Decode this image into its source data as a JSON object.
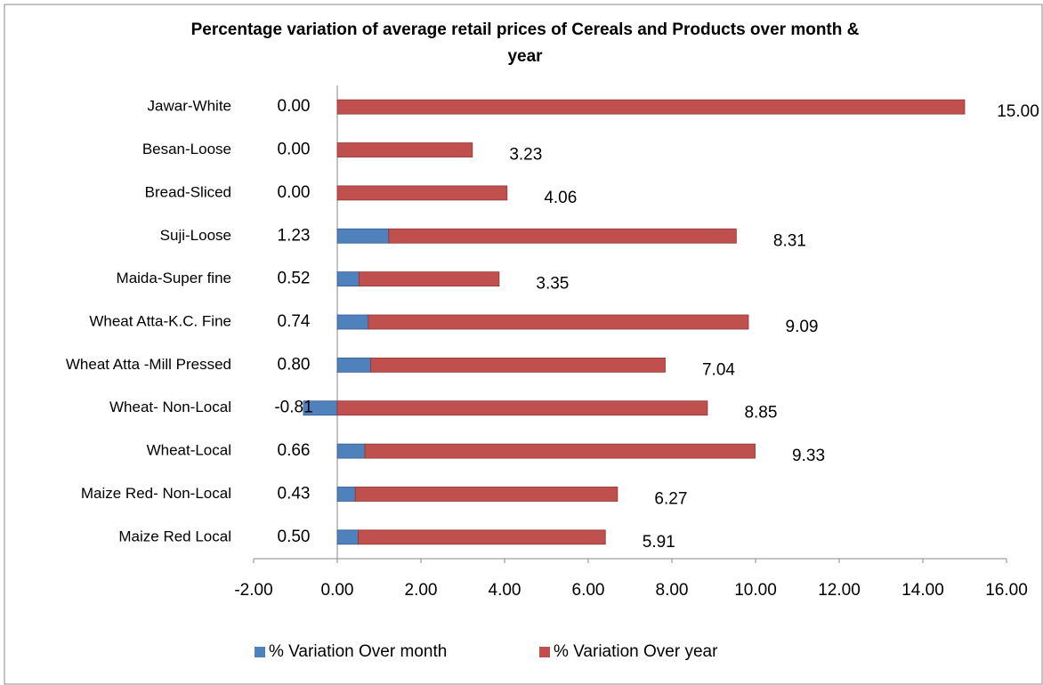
{
  "chart_data": {
    "type": "bar",
    "orientation": "horizontal",
    "stacked": true,
    "title": "Percentage variation of average retail prices of Cereals and Products over month & year",
    "categories": [
      "Jawar-White",
      "Besan-Loose",
      "Bread-Sliced",
      "Suji-Loose",
      "Maida-Super fine",
      "Wheat Atta-K.C. Fine",
      "Wheat Atta -Mill Pressed",
      "Wheat- Non-Local",
      "Wheat-Local",
      "Maize Red- Non-Local",
      "Maize Red Local"
    ],
    "series": [
      {
        "name": "% Variation Over month",
        "color": "#4f81bd",
        "values": [
          0,
          0,
          0,
          1.23,
          0.52,
          0.74,
          0.8,
          -0.81,
          0.66,
          0.43,
          0.5
        ],
        "value_labels": [
          "0.00",
          "0.00",
          "0.00",
          "1.23",
          "0.52",
          "0.74",
          "0.80",
          "-0.81",
          "0.66",
          "0.43",
          "0.50"
        ]
      },
      {
        "name": "% Variation Over year",
        "color": "#c0504d",
        "values": [
          15,
          3.23,
          4.06,
          8.31,
          3.35,
          9.09,
          7.04,
          8.85,
          9.33,
          6.27,
          5.91
        ],
        "value_labels": [
          "15.00",
          "3.23",
          "4.06",
          "8.31",
          "3.35",
          "9.09",
          "7.04",
          "8.85",
          "9.33",
          "6.27",
          "5.91"
        ]
      }
    ],
    "xlim": [
      -2,
      16
    ],
    "xticks": [
      {
        "value": -2,
        "label": "-2.00"
      },
      {
        "value": 0,
        "label": "0.00"
      },
      {
        "value": 2,
        "label": "2.00"
      },
      {
        "value": 4,
        "label": "4.00"
      },
      {
        "value": 6,
        "label": "6.00"
      },
      {
        "value": 8,
        "label": "8.00"
      },
      {
        "value": 10,
        "label": "10.00"
      },
      {
        "value": 12,
        "label": "12.00"
      },
      {
        "value": 14,
        "label": "14.00"
      },
      {
        "value": 16,
        "label": "16.00"
      }
    ],
    "legend": "bottom"
  }
}
